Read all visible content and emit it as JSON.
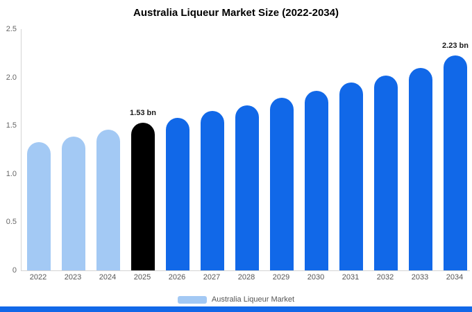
{
  "chart_data": {
    "type": "bar",
    "title": "Australia Liqueur Market Size (2022-2034)",
    "categories": [
      "2022",
      "2023",
      "2024",
      "2025",
      "2026",
      "2027",
      "2028",
      "2029",
      "2030",
      "2031",
      "2032",
      "2033",
      "2034"
    ],
    "values": [
      1.33,
      1.39,
      1.46,
      1.53,
      1.58,
      1.65,
      1.71,
      1.79,
      1.86,
      1.95,
      2.02,
      2.1,
      2.23
    ],
    "unit": "bn",
    "bar_colors": [
      "#a3c9f4",
      "#a3c9f4",
      "#a3c9f4",
      "#000000",
      "#1168e8",
      "#1168e8",
      "#1168e8",
      "#1168e8",
      "#1168e8",
      "#1168e8",
      "#1168e8",
      "#1168e8",
      "#1168e8"
    ],
    "ylim": [
      0,
      2.5
    ],
    "yticks": [
      "0",
      "0.5",
      "1.0",
      "1.5",
      "2.0",
      "2.5"
    ],
    "grid": false,
    "annotations": [
      {
        "index": 3,
        "text": "1.53 bn"
      },
      {
        "index": 12,
        "text": "2.23 bn"
      }
    ],
    "legend": {
      "label": "Australia Liqueur Market",
      "swatch_color": "#a3c9f4",
      "position": "bottom"
    },
    "colors": {
      "historical_bar": "#a3c9f4",
      "highlight_bar": "#000000",
      "forecast_bar": "#1168e8",
      "axis_text": "#666666",
      "axis_line": "#d4d4d4",
      "bottom_strip": "#1168e8"
    }
  }
}
